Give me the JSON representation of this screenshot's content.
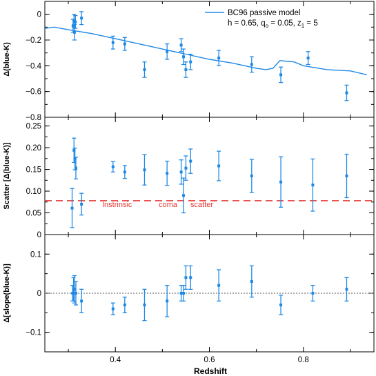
{
  "chart_data": [
    {
      "type": "scatter",
      "panel": "top",
      "ylabel": "Δ(blue-K)",
      "ylim": [
        -0.8,
        0.1
      ],
      "yticks": [
        0,
        -0.2,
        -0.4,
        -0.6,
        -0.8
      ],
      "ytick_labels": [
        "0",
        "−0.2",
        "−0.4",
        "−0.6",
        "−0.8"
      ],
      "legend": {
        "placement": "top-right",
        "line1": "BC96 passive model",
        "line2_a": "h = 0.65, q",
        "line2_a_sub": "o",
        "line2_b": " = 0.05, z",
        "line2_b_sub": "1",
        "line2_c": " = 5"
      },
      "series": [
        {
          "kind": "errorbar",
          "color": "#1e88e5",
          "points": [
            {
              "x": 0.31,
              "y": -0.09,
              "err": 0.05
            },
            {
              "x": 0.312,
              "y": -0.05,
              "err": 0.05
            },
            {
              "x": 0.313,
              "y": -0.14,
              "err": 0.06
            },
            {
              "x": 0.315,
              "y": -0.06,
              "err": 0.05
            },
            {
              "x": 0.328,
              "y": -0.03,
              "err": 0.05
            },
            {
              "x": 0.395,
              "y": -0.22,
              "err": 0.05
            },
            {
              "x": 0.42,
              "y": -0.23,
              "err": 0.05
            },
            {
              "x": 0.462,
              "y": -0.43,
              "err": 0.06
            },
            {
              "x": 0.51,
              "y": -0.29,
              "err": 0.06
            },
            {
              "x": 0.54,
              "y": -0.24,
              "err": 0.05
            },
            {
              "x": 0.545,
              "y": -0.33,
              "err": 0.06
            },
            {
              "x": 0.55,
              "y": -0.43,
              "err": 0.06
            },
            {
              "x": 0.56,
              "y": -0.37,
              "err": 0.06
            },
            {
              "x": 0.62,
              "y": -0.34,
              "err": 0.06
            },
            {
              "x": 0.69,
              "y": -0.39,
              "err": 0.06
            },
            {
              "x": 0.752,
              "y": -0.47,
              "err": 0.06
            },
            {
              "x": 0.81,
              "y": -0.34,
              "err": 0.05
            },
            {
              "x": 0.892,
              "y": -0.61,
              "err": 0.06
            }
          ]
        },
        {
          "kind": "line",
          "name": "BC96 passive model",
          "color": "#1e88e5",
          "x": [
            0.25,
            0.27,
            0.3,
            0.35,
            0.4,
            0.45,
            0.5,
            0.55,
            0.6,
            0.65,
            0.7,
            0.72,
            0.735,
            0.75,
            0.78,
            0.8,
            0.85,
            0.9,
            0.935
          ],
          "y": [
            -0.11,
            -0.1,
            -0.12,
            -0.15,
            -0.19,
            -0.23,
            -0.27,
            -0.31,
            -0.35,
            -0.38,
            -0.42,
            -0.43,
            -0.42,
            -0.36,
            -0.37,
            -0.4,
            -0.43,
            -0.44,
            -0.47
          ]
        }
      ]
    },
    {
      "type": "scatter",
      "panel": "middle",
      "ylabel": "Scatter [Δ(blue-K)]",
      "ylim": [
        0,
        0.27
      ],
      "yticks": [
        0,
        0.05,
        0.1,
        0.15,
        0.2,
        0.25
      ],
      "ytick_labels": [
        "0",
        "0.05",
        "0.10",
        "0.15",
        "0.20",
        "0.25"
      ],
      "reference_line": {
        "y": 0.078,
        "color": "#e53935",
        "style": "dashed"
      },
      "annotation_words": [
        "Instrinsic",
        "coma",
        "scatter"
      ],
      "series": [
        {
          "kind": "errorbar",
          "color": "#1e88e5",
          "points": [
            {
              "x": 0.308,
              "y": 0.061,
              "err": 0.045
            },
            {
              "x": 0.312,
              "y": 0.194,
              "err": 0.028
            },
            {
              "x": 0.314,
              "y": 0.174,
              "err": 0.025
            },
            {
              "x": 0.316,
              "y": 0.153,
              "err": 0.025
            },
            {
              "x": 0.328,
              "y": 0.07,
              "err": 0.025
            },
            {
              "x": 0.395,
              "y": 0.156,
              "err": 0.012
            },
            {
              "x": 0.42,
              "y": 0.144,
              "err": 0.015
            },
            {
              "x": 0.462,
              "y": 0.149,
              "err": 0.035
            },
            {
              "x": 0.51,
              "y": 0.141,
              "err": 0.028
            },
            {
              "x": 0.54,
              "y": 0.144,
              "err": 0.028
            },
            {
              "x": 0.545,
              "y": 0.09,
              "err": 0.04
            },
            {
              "x": 0.55,
              "y": 0.153,
              "err": 0.028
            },
            {
              "x": 0.56,
              "y": 0.169,
              "err": 0.028
            },
            {
              "x": 0.62,
              "y": 0.158,
              "err": 0.034
            },
            {
              "x": 0.69,
              "y": 0.135,
              "err": 0.038
            },
            {
              "x": 0.752,
              "y": 0.121,
              "err": 0.058
            },
            {
              "x": 0.82,
              "y": 0.114,
              "err": 0.06
            },
            {
              "x": 0.892,
              "y": 0.135,
              "err": 0.05
            }
          ]
        }
      ]
    },
    {
      "type": "scatter",
      "panel": "bottom",
      "ylabel": "Δ[slope(blue-K)]",
      "xlabel": "Redshift",
      "ylim": [
        -0.15,
        0.15
      ],
      "xlim": [
        0.25,
        0.95
      ],
      "yticks": [
        0.1,
        0,
        -0.1
      ],
      "ytick_labels": [
        "0.1",
        "0",
        "−0.1"
      ],
      "xticks": [
        0.4,
        0.6,
        0.8
      ],
      "xtick_labels": [
        "0.4",
        "0.6",
        "0.8"
      ],
      "reference_line": {
        "y": 0,
        "color": "#555555",
        "style": "dotted"
      },
      "series": [
        {
          "kind": "errorbar",
          "color": "#1e88e5",
          "points": [
            {
              "x": 0.309,
              "y": 0.0,
              "err": 0.02
            },
            {
              "x": 0.311,
              "y": 0.01,
              "err": 0.03
            },
            {
              "x": 0.313,
              "y": 0.01,
              "err": 0.035
            },
            {
              "x": 0.316,
              "y": 0.0,
              "err": 0.03
            },
            {
              "x": 0.328,
              "y": -0.02,
              "err": 0.03
            },
            {
              "x": 0.395,
              "y": -0.04,
              "err": 0.015
            },
            {
              "x": 0.42,
              "y": -0.03,
              "err": 0.02
            },
            {
              "x": 0.462,
              "y": -0.03,
              "err": 0.04
            },
            {
              "x": 0.51,
              "y": -0.02,
              "err": 0.04
            },
            {
              "x": 0.54,
              "y": 0.0,
              "err": 0.02
            },
            {
              "x": 0.545,
              "y": 0.0,
              "err": 0.02
            },
            {
              "x": 0.55,
              "y": 0.04,
              "err": 0.03
            },
            {
              "x": 0.56,
              "y": 0.04,
              "err": 0.03
            },
            {
              "x": 0.62,
              "y": 0.02,
              "err": 0.04
            },
            {
              "x": 0.69,
              "y": 0.03,
              "err": 0.04
            },
            {
              "x": 0.752,
              "y": -0.03,
              "err": 0.025
            },
            {
              "x": 0.82,
              "y": 0.0,
              "err": 0.02
            },
            {
              "x": 0.892,
              "y": 0.01,
              "err": 0.03
            }
          ]
        }
      ]
    }
  ]
}
